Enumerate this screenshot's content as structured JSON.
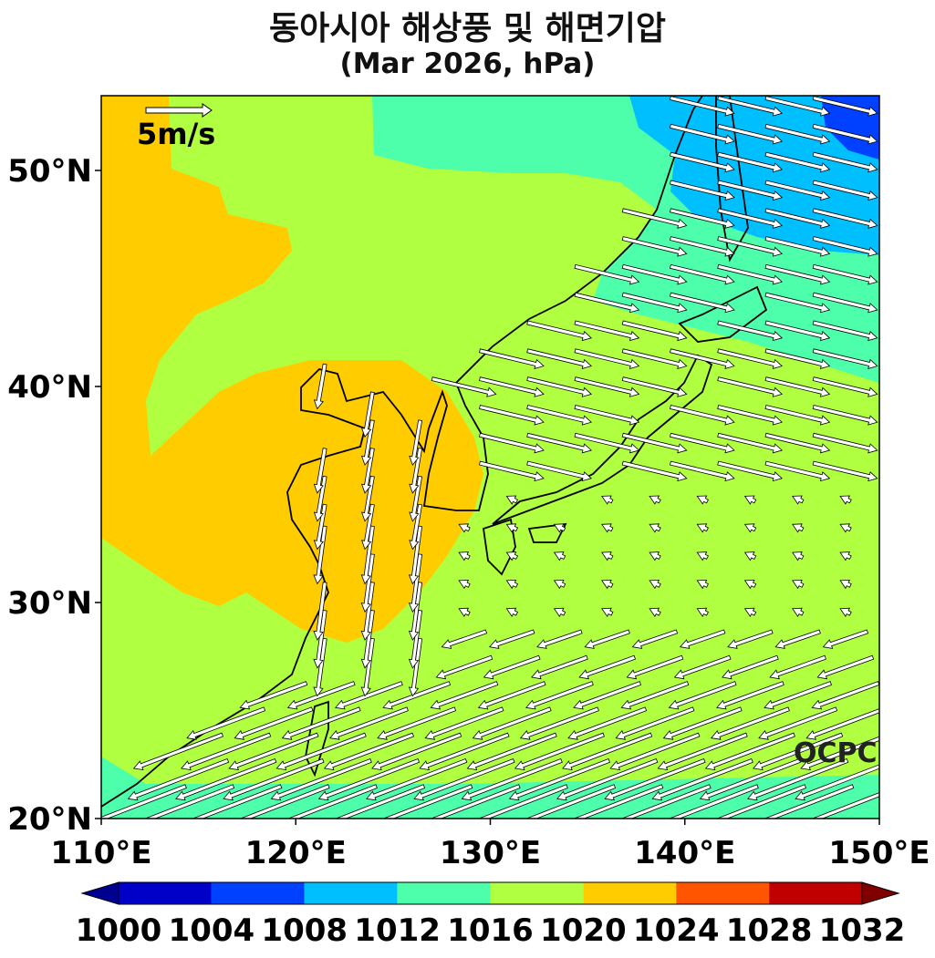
{
  "title": "동아시아 해상풍 및 해면기압",
  "subtitle": "(Mar 2026, hPa)",
  "wind_reference": "5m/s",
  "credit": "OCPC",
  "map": {
    "region": "East Asia",
    "lon_range": [
      110,
      150
    ],
    "lat_range": [
      20,
      53.5
    ],
    "lat_ticks": [
      "20°N",
      "30°N",
      "40°N",
      "50°N"
    ],
    "lon_ticks": [
      "110°E",
      "120°E",
      "130°E",
      "140°E",
      "150°E"
    ],
    "field": "sea level pressure (filled contours) with surface wind vectors"
  },
  "colorbar": {
    "labels": [
      "1000",
      "1004",
      "1008",
      "1012",
      "1016",
      "1020",
      "1024",
      "1028",
      "1032"
    ],
    "colors": [
      "#0000c8",
      "#0040ff",
      "#00bfff",
      "#4dffaa",
      "#b0ff40",
      "#ffcc00",
      "#ff5500",
      "#c00000"
    ],
    "under_color": "#000090",
    "over_color": "#800000"
  }
}
